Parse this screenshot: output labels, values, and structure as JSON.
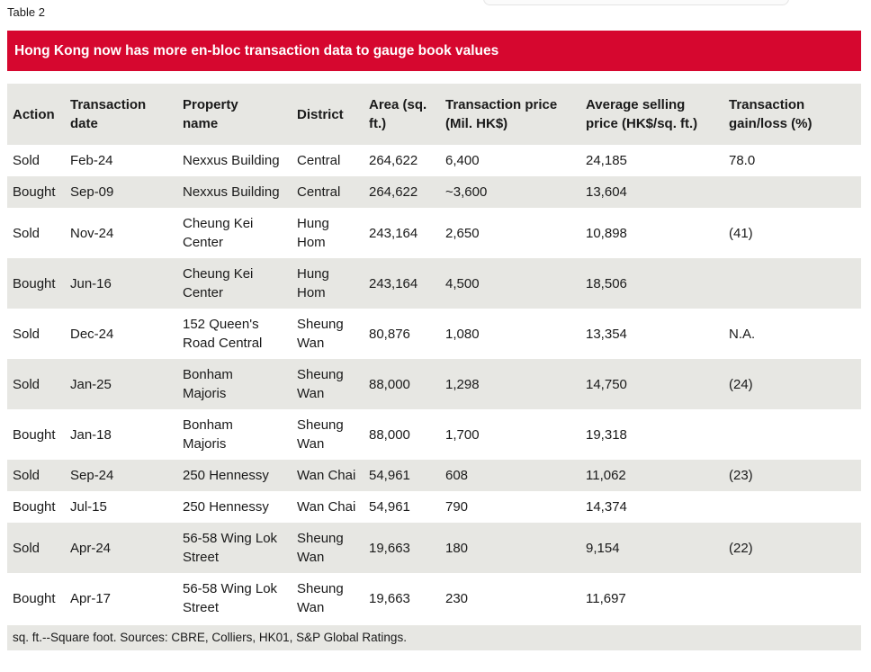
{
  "page": {
    "table_label": "Table 2",
    "banner_title": "Hong Kong now has more en-bloc transaction data to gauge book values",
    "footnote": "sq. ft.--Square foot. Sources: CBRE, Colliers, HK01, S&P Global Ratings."
  },
  "colors": {
    "banner_red": "#d6072f",
    "row_stripe_gray": "#e7e7e3",
    "text": "#1a1a1a",
    "banner_text": "#ffffff"
  },
  "table": {
    "columns": [
      "Action",
      "Transaction\ndate",
      "Property\nname",
      "District",
      "Area (sq.\nft.)",
      "Transaction price\n(Mil. HK$)",
      "Average selling\nprice (HK$/sq. ft.)",
      "Transaction\ngain/loss (%)"
    ],
    "rows": [
      {
        "action": "Sold",
        "date": "Feb-24",
        "property": "Nexxus Building",
        "district": "Central",
        "area": "264,622",
        "price": "6,400",
        "avg_price": "24,185",
        "gain_loss": "78.0"
      },
      {
        "action": "Bought",
        "date": "Sep-09",
        "property": "Nexxus Building",
        "district": "Central",
        "area": "264,622",
        "price": "~3,600",
        "avg_price": "13,604",
        "gain_loss": ""
      },
      {
        "action": "Sold",
        "date": "Nov-24",
        "property": "Cheung Kei\nCenter",
        "district": "Hung\nHom",
        "area": "243,164",
        "price": "2,650",
        "avg_price": "10,898",
        "gain_loss": "(41)"
      },
      {
        "action": "Bought",
        "date": "Jun-16",
        "property": "Cheung Kei\nCenter",
        "district": "Hung\nHom",
        "area": "243,164",
        "price": "4,500",
        "avg_price": "18,506",
        "gain_loss": ""
      },
      {
        "action": "Sold",
        "date": "Dec-24",
        "property": "152 Queen's\nRoad Central",
        "district": "Sheung\nWan",
        "area": "80,876",
        "price": "1,080",
        "avg_price": "13,354",
        "gain_loss": "N.A."
      },
      {
        "action": "Sold",
        "date": "Jan-25",
        "property": "Bonham\nMajoris",
        "district": "Sheung\nWan",
        "area": "88,000",
        "price": "1,298",
        "avg_price": "14,750",
        "gain_loss": "(24)"
      },
      {
        "action": "Bought",
        "date": "Jan-18",
        "property": "Bonham\nMajoris",
        "district": "Sheung\nWan",
        "area": "88,000",
        "price": "1,700",
        "avg_price": "19,318",
        "gain_loss": ""
      },
      {
        "action": "Sold",
        "date": "Sep-24",
        "property": "250 Hennessy",
        "district": "Wan Chai",
        "area": "54,961",
        "price": "608",
        "avg_price": "11,062",
        "gain_loss": "(23)"
      },
      {
        "action": "Bought",
        "date": "Jul-15",
        "property": "250 Hennessy",
        "district": "Wan Chai",
        "area": "54,961",
        "price": "790",
        "avg_price": "14,374",
        "gain_loss": ""
      },
      {
        "action": "Sold",
        "date": "Apr-24",
        "property": "56-58 Wing Lok\nStreet",
        "district": "Sheung\nWan",
        "area": "19,663",
        "price": "180",
        "avg_price": "9,154",
        "gain_loss": "(22)"
      },
      {
        "action": "Bought",
        "date": "Apr-17",
        "property": "56-58 Wing Lok\nStreet",
        "district": "Sheung\nWan",
        "area": "19,663",
        "price": "230",
        "avg_price": "11,697",
        "gain_loss": ""
      }
    ]
  }
}
